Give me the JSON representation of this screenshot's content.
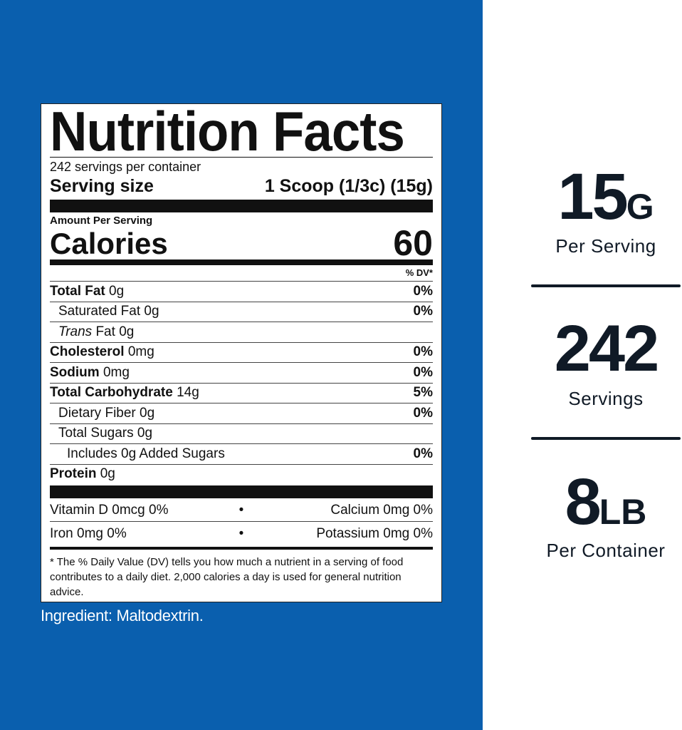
{
  "colors": {
    "background_blue": "#0a5fae",
    "stat_text": "#101a26"
  },
  "label": {
    "title": "Nutrition Facts",
    "servings_per_container": "242 servings per container",
    "serving_size_label": "Serving size",
    "serving_size_value": "1 Scoop (1/3c) (15g)",
    "amount_per_serving": "Amount Per Serving",
    "calories_label": "Calories",
    "calories_value": "60",
    "dv_header": "% DV*",
    "nutrients": [
      {
        "name": "Total Fat",
        "amount": "0g",
        "dv": "0%",
        "bold": true,
        "indent": 0
      },
      {
        "name": "Saturated Fat",
        "amount": "0g",
        "dv": "0%",
        "bold": false,
        "indent": 1
      },
      {
        "name": "Trans Fat",
        "amount": "0g",
        "dv": "",
        "bold": false,
        "indent": 1,
        "italic_prefix": "Trans"
      },
      {
        "name": "Cholesterol",
        "amount": "0mg",
        "dv": "0%",
        "bold": true,
        "indent": 0
      },
      {
        "name": "Sodium",
        "amount": "0mg",
        "dv": "0%",
        "bold": true,
        "indent": 0
      },
      {
        "name": "Total Carbohydrate",
        "amount": "14g",
        "dv": "5%",
        "bold": true,
        "indent": 0
      },
      {
        "name": "Dietary Fiber",
        "amount": "0g",
        "dv": "0%",
        "bold": false,
        "indent": 1
      },
      {
        "name": "Total Sugars",
        "amount": "0g",
        "dv": "",
        "bold": false,
        "indent": 1
      },
      {
        "name": "Includes 0g Added Sugars",
        "amount": "",
        "dv": "0%",
        "bold": false,
        "indent": 2
      },
      {
        "name": "Protein",
        "amount": "0g",
        "dv": "",
        "bold": true,
        "indent": 0
      }
    ],
    "vitamins": [
      {
        "left": "Vitamin D  0mcg  0%",
        "right": "Calcium  0mg  0%"
      },
      {
        "left": "Iron  0mg  0%",
        "right": "Potassium  0mg  0%"
      }
    ],
    "footnote": "* The % Daily Value (DV) tells you how much a nutrient in a serving of food contributes to a daily diet. 2,000 calories a day is used for general nutrition advice."
  },
  "ingredient": "Ingredient: Maltodextrin.",
  "stats": [
    {
      "number": "15",
      "unit": "G",
      "caption": "Per Serving"
    },
    {
      "number": "242",
      "unit": "",
      "caption": "Servings"
    },
    {
      "number": "8",
      "unit": "LB",
      "caption": "Per Container"
    }
  ]
}
